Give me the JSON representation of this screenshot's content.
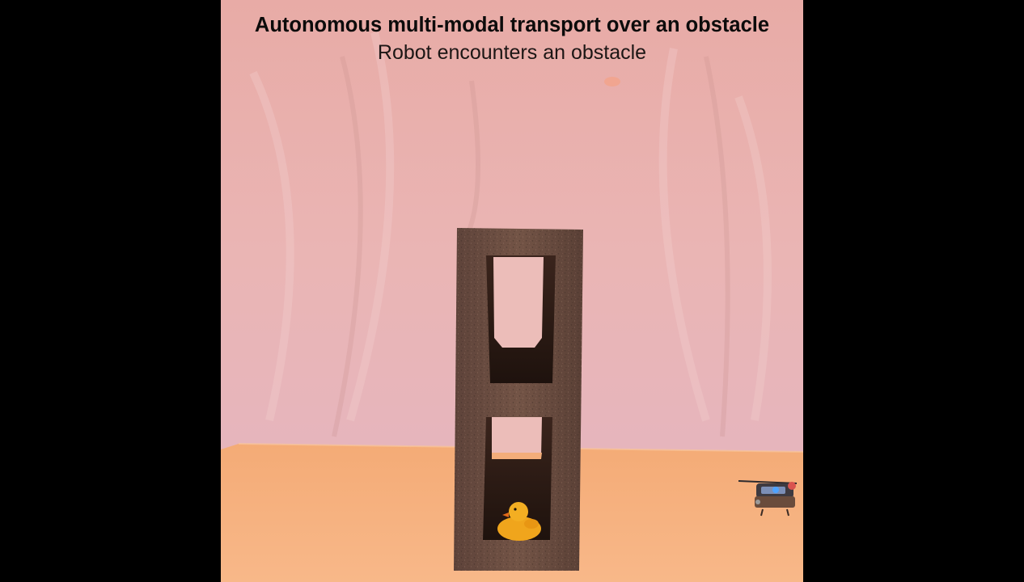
{
  "video": {
    "title": "Autonomous multi-modal transport over an obstacle",
    "subtitle": "Robot encounters an obstacle"
  },
  "scene": {
    "objects": [
      "cinder-block",
      "rubber-duck",
      "quadrotor-robot"
    ],
    "colors": {
      "letterbox": "#000000",
      "backdrop": "#e9b2ad",
      "table": "#f6b07e",
      "block": "#6b4c40",
      "duck": "#f0a51c"
    }
  }
}
